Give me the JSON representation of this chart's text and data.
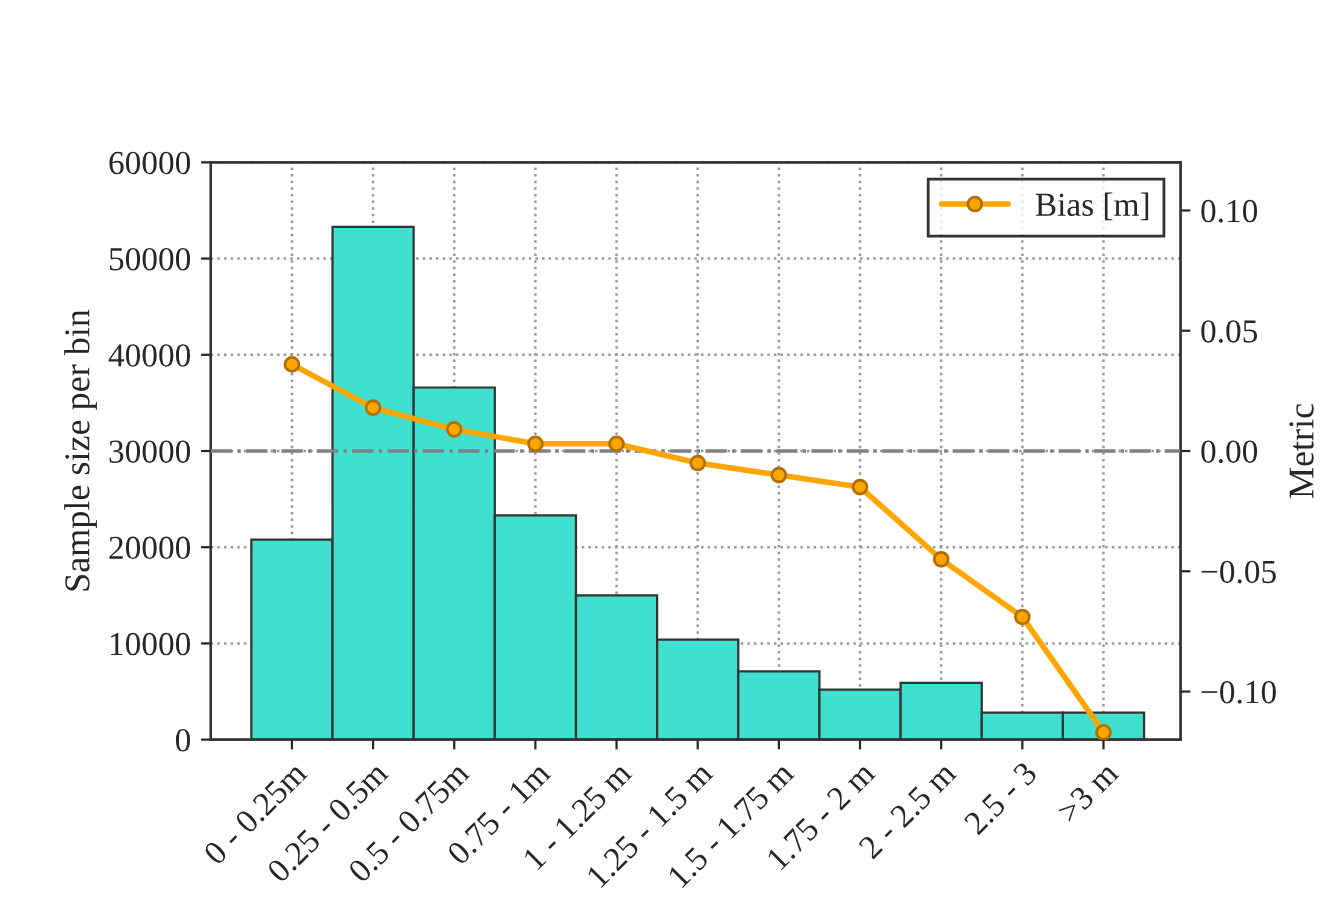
{
  "chart_data": {
    "type": "bar",
    "categories": [
      "0 - 0.25m",
      "0.25 - 0.5m",
      "0.5 - 0.75m",
      "0.75 - 1m",
      "1 - 1.25 m",
      "1.25 - 1.5 m",
      "1.5 - 1.75 m",
      "1.75 - 2 m",
      "2 - 2.5 m",
      "2.5 - 3",
      ">3 m"
    ],
    "ylabel": "Sample size per bin",
    "y2label": "Metric",
    "series": [
      {
        "color": "#40e0d0",
        "values": [
          20800,
          53300,
          36600,
          23300,
          15000,
          10400,
          7100,
          5200,
          5900,
          2800,
          2800
        ]
      },
      {
        "type": "line",
        "axis": "y2",
        "name": "Bias [m]",
        "color": "#ffa500",
        "values": [
          0.036,
          0.018,
          0.009,
          0.003,
          0.003,
          -0.005,
          -0.01,
          -0.015,
          -0.045,
          -0.069,
          -0.117
        ]
      }
    ],
    "ylim": [
      0,
      60000
    ],
    "yticks": [
      0,
      10000,
      20000,
      30000,
      40000,
      50000,
      60000
    ],
    "y2lim": [
      -0.12,
      0.12
    ],
    "y2ticks": [
      {
        "value": -0.1,
        "label": "−0.10"
      },
      {
        "value": -0.05,
        "label": "−0.05"
      },
      {
        "value": 0,
        "label": "0.00"
      },
      {
        "value": 0.05,
        "label": "0.05"
      },
      {
        "value": 0.1,
        "label": "0.10"
      }
    ],
    "ref_lines": [
      {
        "axis": "y2",
        "value": 0,
        "color": "#808080",
        "line_style": "dashdot"
      }
    ],
    "grid": true,
    "legend": "top right",
    "marker": "circle",
    "line_style": "solid"
  }
}
